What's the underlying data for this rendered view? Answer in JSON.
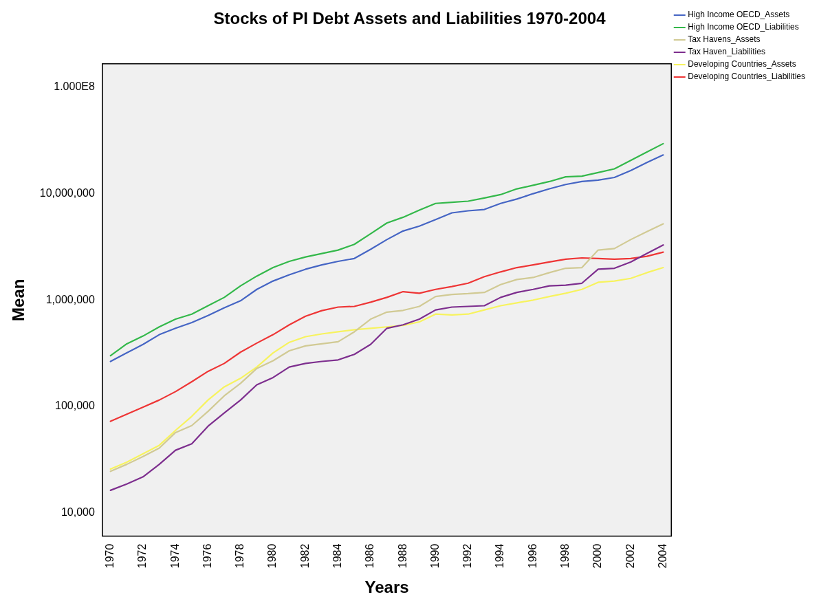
{
  "chart_data": {
    "type": "line",
    "title": "Stocks of PI Debt Assets and Liabilities 1970-2004",
    "xlabel": "Years",
    "ylabel": "Mean",
    "categories": [
      "1970",
      null,
      "1972",
      null,
      "1974",
      null,
      "1976",
      null,
      "1978",
      null,
      "1980",
      null,
      "1982",
      null,
      "1984",
      null,
      "1986",
      null,
      "1988",
      null,
      "1990",
      null,
      "1992",
      null,
      "1994",
      null,
      "1996",
      null,
      "1998",
      null,
      "2000",
      null,
      "2002",
      null,
      "2004"
    ],
    "log": "y",
    "ylim": [
      6040,
      166000000
    ],
    "yticks": [
      {
        "value": 10000,
        "label": "10,000"
      },
      {
        "value": 100000,
        "label": "100,000"
      },
      {
        "value": 1000000,
        "label": "1,000,000"
      },
      {
        "value": 10000000,
        "label": "10,000,000"
      },
      {
        "value": 100000000,
        "label": "1.000E8"
      }
    ],
    "grid": false,
    "legend": "top right",
    "marker": "none",
    "line_style": "solid",
    "series": [
      {
        "name": "High Income OECD_Assets",
        "color": "#4565c4",
        "values": [
          265000,
          319000,
          383000,
          473000,
          543000,
          614000,
          715000,
          845000,
          985000,
          1260000,
          1510000,
          1730000,
          1950000,
          2140000,
          2310000,
          2460000,
          3000000,
          3700000,
          4460000,
          4960000,
          5700000,
          6600000,
          6900000,
          7100000,
          8100000,
          8900000,
          10000000,
          11100000,
          12200000,
          13000000,
          13400000,
          14200000,
          16500000,
          19600000,
          23100000
        ]
      },
      {
        "name": "High Income OECD_Liabilities",
        "color": "#33b84a",
        "values": [
          300000,
          388000,
          459000,
          560000,
          662000,
          738000,
          885000,
          1060000,
          1360000,
          1680000,
          2020000,
          2310000,
          2540000,
          2740000,
          2950000,
          3340000,
          4200000,
          5300000,
          6000000,
          7000000,
          8100000,
          8300000,
          8500000,
          9100000,
          9800000,
          11100000,
          12000000,
          13000000,
          14400000,
          14600000,
          15800000,
          17100000,
          20500000,
          24600000,
          29500000
        ]
      },
      {
        "name": "Tax Havens_Assets",
        "color": "#d1ca94",
        "values": [
          24600,
          28600,
          33900,
          40600,
          56900,
          66200,
          89900,
          126000,
          165000,
          228000,
          269000,
          334000,
          371000,
          388000,
          406000,
          503000,
          662000,
          770000,
          800000,
          872000,
          1080000,
          1130000,
          1150000,
          1180000,
          1400000,
          1560000,
          1630000,
          1810000,
          1990000,
          2020000,
          2950000,
          3050000,
          3700000,
          4400000,
          5200000
        ]
      },
      {
        "name": "Tax Haven_Liabilities",
        "color": "#7d2e8e",
        "values": [
          16300,
          18700,
          21800,
          28600,
          38800,
          44600,
          65300,
          87100,
          115000,
          160000,
          187000,
          235000,
          254000,
          265000,
          274000,
          309000,
          383000,
          543000,
          586000,
          662000,
          808000,
          859000,
          872000,
          885000,
          1060000,
          1180000,
          1260000,
          1360000,
          1380000,
          1440000,
          1950000,
          1990000,
          2280000,
          2740000,
          3290000
        ]
      },
      {
        "name": "Developing Countries_Assets",
        "color": "#f7f35e",
        "values": [
          25800,
          30000,
          36000,
          43200,
          59600,
          80800,
          115000,
          153000,
          184000,
          235000,
          319000,
          401000,
          453000,
          481000,
          503000,
          527000,
          543000,
          560000,
          578000,
          624000,
          738000,
          726000,
          738000,
          808000,
          885000,
          942000,
          1000000,
          1080000,
          1160000,
          1260000,
          1470000,
          1510000,
          1600000,
          1810000,
          2020000
        ]
      },
      {
        "name": "Developing Countries_Liabilities",
        "color": "#ee3535",
        "values": [
          72600,
          84600,
          98500,
          115000,
          138000,
          171000,
          214000,
          254000,
          324000,
          394000,
          473000,
          586000,
          705000,
          796000,
          859000,
          872000,
          955000,
          1060000,
          1200000,
          1160000,
          1260000,
          1340000,
          1440000,
          1660000,
          1840000,
          2020000,
          2140000,
          2280000,
          2420000,
          2490000,
          2460000,
          2420000,
          2460000,
          2580000,
          2820000
        ]
      }
    ]
  }
}
